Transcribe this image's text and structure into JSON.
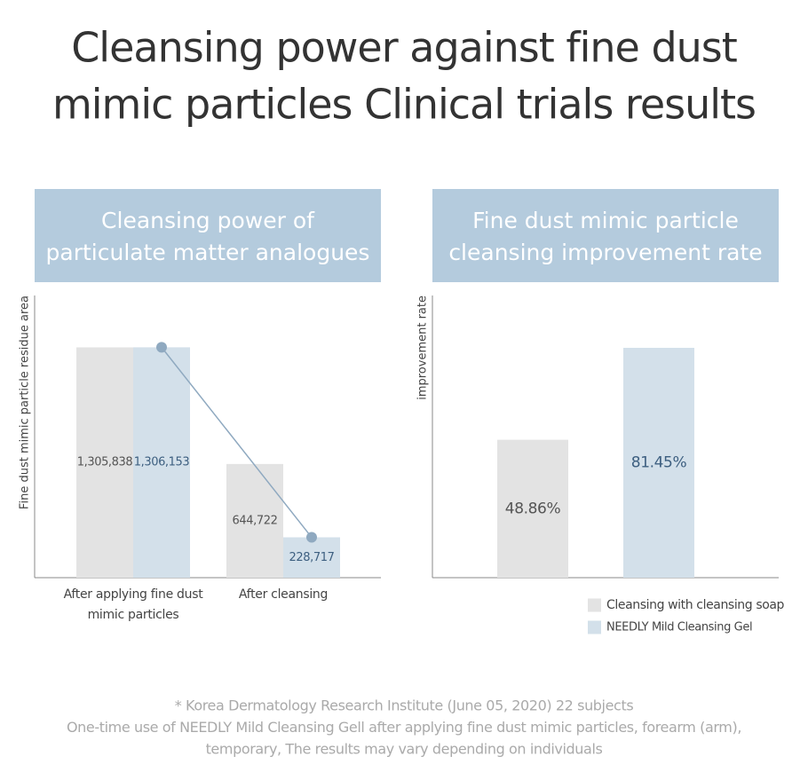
{
  "title": [
    "Cleansing power against fine dust",
    "mimic particles Clinical trials results"
  ],
  "chart_data": [
    {
      "type": "bar",
      "title": [
        "Cleansing power of",
        "particulate matter analogues"
      ],
      "ylabel": "Fine dust mimic particle residue area",
      "categories": [
        "After applying fine dust mimic particles",
        "After cleansing"
      ],
      "series": [
        {
          "color": "#e3e3e3",
          "values": [
            1305838,
            644722
          ],
          "value_labels": [
            "1,305,838",
            "644,722"
          ]
        },
        {
          "color": "#d3e0ea",
          "values": [
            1306153,
            228717
          ],
          "value_labels": [
            "1,306,153",
            "228,717"
          ]
        }
      ],
      "connector": {
        "series": 1,
        "color": "#8fa9c0"
      },
      "ylim": [
        0,
        1600000
      ]
    },
    {
      "type": "bar",
      "title": [
        "Fine dust mimic particle",
        "cleansing improvement rate"
      ],
      "ylabel": "improvement rate",
      "categories": [
        null
      ],
      "series": [
        {
          "name": "Cleansing with cleansing soap",
          "color": "#e3e3e3",
          "values": [
            48.86
          ],
          "value_labels": [
            "48.86%"
          ]
        },
        {
          "name": "NEEDLY Mild Cleansing Gel",
          "color": "#d3e0ea",
          "values": [
            81.45
          ],
          "value_labels": [
            "81.45%"
          ]
        }
      ],
      "ylim": [
        0,
        100
      ],
      "legend": "bottom-right"
    }
  ],
  "footnotes": [
    "* Korea Dermatology Research Institute (June 05, 2020) 22 subjects",
    "One-time use of NEEDLY Mild Cleansing Gell after applying fine dust mimic particles, forearm (arm),",
    "temporary, The results may vary depending on individuals"
  ]
}
